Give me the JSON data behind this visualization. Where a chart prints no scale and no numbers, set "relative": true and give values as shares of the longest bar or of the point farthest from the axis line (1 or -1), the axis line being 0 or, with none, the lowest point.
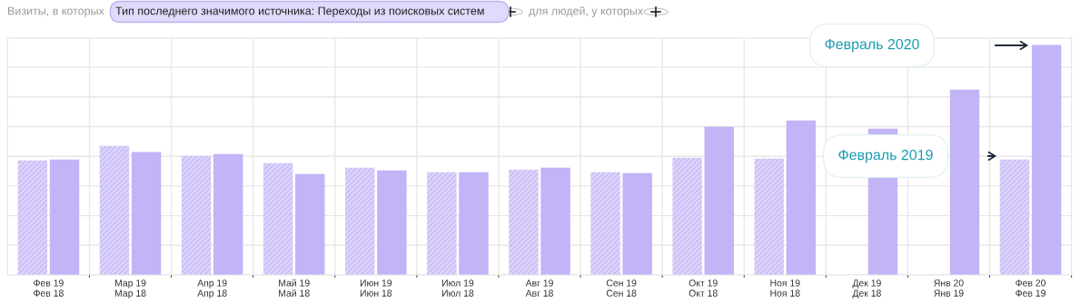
{
  "chart_data": {
    "type": "bar",
    "relative": true,
    "grid": true,
    "categories": [
      "Фев 19\nФев 18",
      "Мар 19\nМар 18",
      "Апр 19\nАпр 18",
      "Май 19\nМай 18",
      "Июн 19\nИюн 18",
      "Июл 19\nИюл 18",
      "Авг 19\nАвг 18",
      "Сен 19\nСен 18",
      "Окт 19\nОкт 18",
      "Ноя 19\nНоя 18",
      "Дек 19\nДек 18",
      "Янв 20\nЯнв 19",
      "Фев 20\nФев 19"
    ],
    "series": [
      {
        "color": "#ddd4fb",
        "values": [
          0.498,
          0.561,
          0.518,
          0.486,
          0.466,
          0.447,
          0.458,
          0.447,
          0.51,
          0.506,
          null,
          null,
          0.502
        ]
      },
      {
        "color": "#c3b3f7",
        "values": [
          0.502,
          0.534,
          0.526,
          0.439,
          0.455,
          0.447,
          0.466,
          0.443,
          0.644,
          0.672,
          0.636,
          0.806,
          1
        ]
      }
    ],
    "annotations": [
      "Визиты, в которых",
      "Тип последнего значимого источника: Переходы из поисковых систем",
      "для людей, у которых",
      "Февраль 2020",
      "Февраль 2019"
    ]
  }
}
